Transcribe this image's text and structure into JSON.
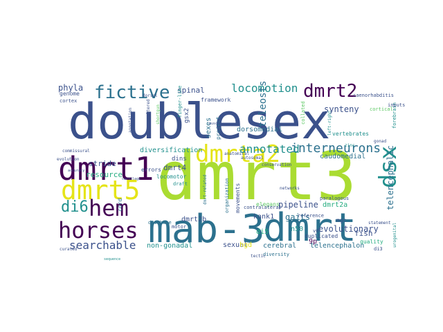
{
  "palette": {
    "dark_purple": "#440154",
    "indigo": "#3b518b",
    "blue": "#2c718e",
    "teal": "#21908d",
    "green": "#27ad81",
    "lime": "#5cc863",
    "yellow_green": "#aadc32",
    "yellow": "#e5e419"
  },
  "words": [
    {
      "text": "doublesex",
      "color": "indigo"
    },
    {
      "text": "dmrt3",
      "color": "yellow_green"
    },
    {
      "text": "mab-3",
      "color": "blue"
    },
    {
      "text": "dmrt",
      "color": "blue"
    },
    {
      "text": "dmrt1",
      "color": "dark_purple"
    },
    {
      "text": "dmrt5",
      "color": "yellow"
    },
    {
      "text": "dmrta2",
      "color": "yellow"
    },
    {
      "text": "hem",
      "color": "dark_purple"
    },
    {
      "text": "horses",
      "color": "dark_purple"
    },
    {
      "text": "fictive",
      "color": "blue"
    },
    {
      "text": "dmrt2",
      "color": "dark_purple"
    },
    {
      "text": "dsx",
      "color": "teal"
    },
    {
      "text": "di6",
      "color": "teal"
    },
    {
      "text": "interneurons",
      "color": "blue"
    },
    {
      "text": "locomotion",
      "color": "teal"
    },
    {
      "text": "annotated",
      "color": "teal"
    },
    {
      "text": "searchable",
      "color": "indigo"
    },
    {
      "text": "synteny",
      "color": "indigo"
    },
    {
      "text": "phyla",
      "color": "indigo"
    },
    {
      "text": "spinal",
      "color": "indigo"
    },
    {
      "text": "teleosts",
      "color": "blue"
    },
    {
      "text": "telencephalic",
      "color": "blue"
    },
    {
      "text": "dorsomedial",
      "color": "blue"
    },
    {
      "text": "evolutionary",
      "color": "indigo"
    },
    {
      "text": "pipeline",
      "color": "indigo"
    },
    {
      "text": "gaits",
      "color": "blue"
    },
    {
      "text": "resource",
      "color": "green"
    },
    {
      "text": "stride",
      "color": "indigo"
    },
    {
      "text": "dmrt4",
      "color": "indigo"
    },
    {
      "text": "dmrt2b",
      "color": "indigo"
    },
    {
      "text": "dmrt2a",
      "color": "green"
    },
    {
      "text": "kank1",
      "color": "indigo"
    },
    {
      "text": "di5",
      "color": "green"
    },
    {
      "text": "9p",
      "color": "dark_purple"
    },
    {
      "text": "fish",
      "color": "indigo"
    },
    {
      "text": "sexual",
      "color": "indigo"
    },
    {
      "text": "cerebral",
      "color": "blue"
    },
    {
      "text": "telencephalon",
      "color": "blue"
    },
    {
      "text": "non-gonadal",
      "color": "teal"
    },
    {
      "text": "hgd",
      "color": "yellow"
    },
    {
      "text": "diversification",
      "color": "teal"
    },
    {
      "text": "caudomedial",
      "color": "blue"
    },
    {
      "text": "genome",
      "color": "indigo"
    },
    {
      "text": "cortex",
      "color": "indigo"
    },
    {
      "text": "sexes",
      "color": "blue"
    },
    {
      "text": "project",
      "color": "blue"
    },
    {
      "text": "gsx2",
      "color": "indigo"
    },
    {
      "text": "dins",
      "color": "indigo"
    },
    {
      "text": "framework",
      "color": "indigo"
    },
    {
      "text": "n50",
      "color": "teal"
    },
    {
      "text": "duplicated",
      "color": "indigo"
    },
    {
      "text": "reference",
      "color": "indigo"
    },
    {
      "text": "paralogous",
      "color": "indigo"
    },
    {
      "text": "mgc",
      "color": "indigo"
    },
    {
      "text": "quality",
      "color": "green"
    },
    {
      "text": "di3",
      "color": "indigo"
    },
    {
      "text": "diversity",
      "color": "blue"
    },
    {
      "text": "movements",
      "color": "indigo"
    },
    {
      "text": "organization",
      "color": "blue"
    },
    {
      "text": "database",
      "color": "blue"
    },
    {
      "text": "motor",
      "color": "indigo"
    },
    {
      "text": "cord",
      "color": "blue"
    },
    {
      "text": "errors",
      "color": "indigo"
    },
    {
      "text": "locomotor",
      "color": "teal"
    },
    {
      "text": "v0",
      "color": "indigo"
    },
    {
      "text": "draft",
      "color": "teal"
    },
    {
      "text": "vertebrates",
      "color": "teal"
    },
    {
      "text": "caenorhabditis",
      "color": "indigo"
    },
    {
      "text": "forebrain",
      "color": "teal"
    },
    {
      "text": "inputs",
      "color": "indigo"
    },
    {
      "text": "finger-like",
      "color": "teal"
    },
    {
      "text": "evolution",
      "color": "indigo"
    },
    {
      "text": "dorsal",
      "color": "indigo"
    },
    {
      "text": "elegans",
      "color": "lime"
    },
    {
      "text": "contralateral",
      "color": "indigo"
    },
    {
      "text": "statement",
      "color": "indigo"
    },
    {
      "text": "left-right",
      "color": "teal"
    },
    {
      "text": "annotation",
      "color": "indigo"
    },
    {
      "text": "cortical",
      "color": "lime"
    },
    {
      "text": "collated",
      "color": "lime"
    },
    {
      "text": "urogenital",
      "color": "teal"
    },
    {
      "text": "unaltered",
      "color": "indigo"
    },
    {
      "text": "commissural",
      "color": "indigo"
    },
    {
      "text": "anatomical",
      "color": "indigo"
    },
    {
      "text": "curated",
      "color": "indigo"
    },
    {
      "text": "dmrt-related",
      "color": "blue"
    },
    {
      "text": "autosomal",
      "color": "indigo"
    },
    {
      "text": "tectic",
      "color": "indigo"
    },
    {
      "text": "conservation",
      "color": "indigo"
    },
    {
      "text": "networks",
      "color": "indigo"
    },
    {
      "text": "shortgun",
      "color": "lime"
    },
    {
      "text": "accuracy",
      "color": "indigo"
    },
    {
      "text": "cartilage",
      "color": "indigo"
    },
    {
      "text": "zinc",
      "color": "teal"
    },
    {
      "text": "muscle",
      "color": "indigo"
    },
    {
      "text": "sequence",
      "color": "teal"
    },
    {
      "text": "gonad",
      "color": "indigo"
    }
  ]
}
